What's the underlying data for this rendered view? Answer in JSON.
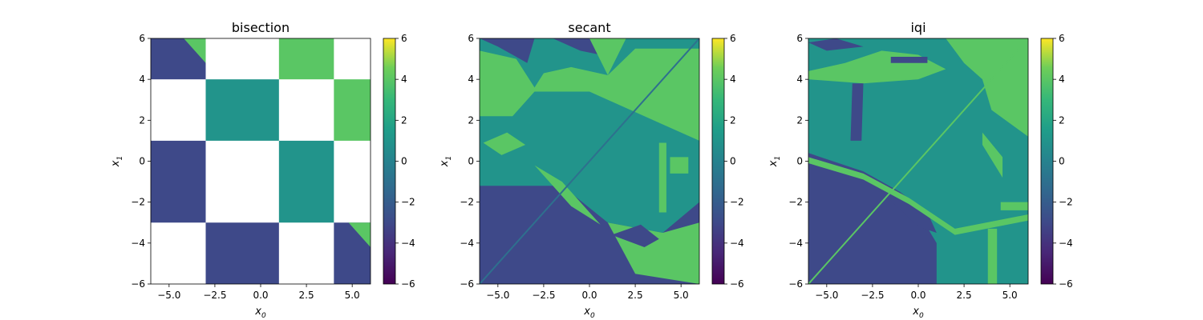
{
  "chart_data": [
    {
      "type": "heatmap",
      "title": "bisection",
      "xlabel": "x",
      "xlabel_sub": "0",
      "ylabel": "x",
      "ylabel_sub": "1",
      "xlim": [
        -6,
        6
      ],
      "ylim": [
        -6,
        6
      ],
      "xticks": [
        -5.0,
        -2.5,
        0.0,
        2.5,
        5.0
      ],
      "xtick_labels": [
        "−5.0",
        "−2.5",
        "0.0",
        "2.5",
        "5.0"
      ],
      "yticks": [
        -6,
        -4,
        -2,
        0,
        2,
        4,
        6
      ],
      "ytick_labels": [
        "−6",
        "−4",
        "−2",
        "0",
        "2",
        "4",
        "6"
      ],
      "colorbar": {
        "range": [
          -6,
          6
        ],
        "ticks": [
          -6,
          -4,
          -2,
          0,
          2,
          4,
          6
        ],
        "tick_labels": [
          "−6",
          "−4",
          "−2",
          "0",
          "2",
          "4",
          "6"
        ]
      },
      "regions": [
        {
          "x": [
            -6,
            -3
          ],
          "y": [
            4,
            6
          ],
          "value": -3
        },
        {
          "x": [
            -3,
            1
          ],
          "y": [
            1,
            4
          ],
          "value": 1
        },
        {
          "x": [
            1,
            4
          ],
          "y": [
            4,
            6
          ],
          "value": 4
        },
        {
          "x": [
            4,
            6
          ],
          "y": [
            1,
            4
          ],
          "value": 4
        },
        {
          "x": [
            -6,
            -3
          ],
          "y": [
            -3,
            1
          ],
          "value": -3
        },
        {
          "x": [
            1,
            4
          ],
          "y": [
            -3,
            1
          ],
          "value": 1
        },
        {
          "x": [
            -3,
            1
          ],
          "y": [
            -6,
            -3
          ],
          "value": -3
        },
        {
          "x": [
            4,
            6
          ],
          "y": [
            -6,
            -3
          ],
          "value": -3
        }
      ],
      "triangles": [
        {
          "points": [
            [
              -4.2,
              6
            ],
            [
              -3,
              6
            ],
            [
              -3,
              4.8
            ]
          ],
          "value": 4
        },
        {
          "points": [
            [
              4.8,
              -3
            ],
            [
              6,
              -3
            ],
            [
              6,
              -4.2
            ]
          ],
          "value": 4
        }
      ]
    },
    {
      "type": "heatmap",
      "title": "secant",
      "xlabel": "x",
      "xlabel_sub": "0",
      "ylabel": "x",
      "ylabel_sub": "1",
      "xlim": [
        -6,
        6
      ],
      "ylim": [
        -6,
        6
      ],
      "xticks": [
        -5.0,
        -2.5,
        0.0,
        2.5,
        5.0
      ],
      "xtick_labels": [
        "−5.0",
        "−2.5",
        "0.0",
        "2.5",
        "5.0"
      ],
      "yticks": [
        -6,
        -4,
        -2,
        0,
        2,
        4,
        6
      ],
      "ytick_labels": [
        "−6",
        "−4",
        "−2",
        "0",
        "2",
        "4",
        "6"
      ],
      "colorbar": {
        "range": [
          -6,
          6
        ],
        "ticks": [
          -6,
          -4,
          -2,
          0,
          2,
          4,
          6
        ],
        "tick_labels": [
          "−6",
          "−4",
          "−2",
          "0",
          "2",
          "4",
          "6"
        ]
      },
      "background_value": 1,
      "polygons": [
        {
          "value": -3,
          "points": [
            [
              -6,
              -1.2
            ],
            [
              -1.5,
              -1.2
            ],
            [
              1,
              -3
            ],
            [
              4,
              -3.5
            ],
            [
              6,
              -2
            ],
            [
              6,
              -6
            ],
            [
              -6,
              -6
            ]
          ]
        },
        {
          "value": 4,
          "points": [
            [
              -6,
              5.4
            ],
            [
              -4,
              5
            ],
            [
              -3,
              3.6
            ],
            [
              -2.5,
              4.3
            ],
            [
              -1,
              4.6
            ],
            [
              1,
              4.2
            ],
            [
              2.5,
              5.5
            ],
            [
              6,
              5.5
            ],
            [
              6,
              1
            ],
            [
              4,
              1.8
            ],
            [
              2,
              2.6
            ],
            [
              0,
              3.4
            ],
            [
              -3,
              3.4
            ],
            [
              -4.2,
              2.2
            ],
            [
              -6,
              2.2
            ]
          ]
        },
        {
          "value": -3,
          "points": [
            [
              -6,
              6
            ],
            [
              -3,
              6
            ],
            [
              -3.4,
              4.8
            ],
            [
              -5,
              5.6
            ]
          ]
        },
        {
          "value": -3,
          "points": [
            [
              -2,
              6
            ],
            [
              0.7,
              6
            ],
            [
              0.6,
              5.2
            ],
            [
              -0.5,
              5.4
            ]
          ]
        },
        {
          "value": 4,
          "points": [
            [
              0,
              6
            ],
            [
              2,
              6
            ],
            [
              1,
              4.2
            ]
          ]
        },
        {
          "value": 4,
          "points": [
            [
              1,
              -3
            ],
            [
              2.5,
              -5.5
            ],
            [
              6,
              -6
            ],
            [
              6,
              -3
            ],
            [
              4,
              -3.5
            ]
          ]
        },
        {
          "value": -3,
          "points": [
            [
              1.2,
              -3.6
            ],
            [
              2.8,
              -3.1
            ],
            [
              3.8,
              -3.8
            ],
            [
              3,
              -4.2
            ]
          ]
        },
        {
          "value": 4,
          "points": [
            [
              -3,
              -0.2
            ],
            [
              -1,
              -2.2
            ],
            [
              0.6,
              -3.1
            ],
            [
              -1.5,
              -1
            ]
          ]
        },
        {
          "value": 4,
          "points": [
            [
              -5.8,
              0.9
            ],
            [
              -4.5,
              1.4
            ],
            [
              -3.5,
              0.8
            ],
            [
              -4.8,
              0.3
            ]
          ]
        },
        {
          "value": 4,
          "points": [
            [
              3.8,
              0.9
            ],
            [
              4.2,
              0.9
            ],
            [
              4.2,
              -2.5
            ],
            [
              3.8,
              -2.5
            ]
          ]
        },
        {
          "value": 4,
          "points": [
            [
              4.4,
              0.2
            ],
            [
              5.4,
              0.2
            ],
            [
              5.4,
              -0.6
            ],
            [
              4.4,
              -0.6
            ]
          ]
        }
      ],
      "diagonal": {
        "value": -1,
        "from": [
          -6,
          -6
        ],
        "to": [
          6,
          6
        ]
      }
    },
    {
      "type": "heatmap",
      "title": "iqi",
      "xlabel": "x",
      "xlabel_sub": "0",
      "ylabel": "x",
      "ylabel_sub": "1",
      "xlim": [
        -6,
        6
      ],
      "ylim": [
        -6,
        6
      ],
      "xticks": [
        -5.0,
        -2.5,
        0.0,
        2.5,
        5.0
      ],
      "xtick_labels": [
        "−5.0",
        "−2.5",
        "0.0",
        "2.5",
        "5.0"
      ],
      "yticks": [
        -6,
        -4,
        -2,
        0,
        2,
        4,
        6
      ],
      "ytick_labels": [
        "−6",
        "−4",
        "−2",
        "0",
        "2",
        "4",
        "6"
      ],
      "colorbar": {
        "range": [
          -6,
          6
        ],
        "ticks": [
          -6,
          -4,
          -2,
          0,
          2,
          4,
          6
        ],
        "tick_labels": [
          "−6",
          "−4",
          "−2",
          "0",
          "2",
          "4",
          "6"
        ]
      },
      "background_value": 1,
      "polygons": [
        {
          "value": -3,
          "points": [
            [
              -6,
              0.4
            ],
            [
              -3,
              -0.5
            ],
            [
              -1,
              -1.5
            ],
            [
              0,
              -2.5
            ],
            [
              1,
              -4
            ],
            [
              1,
              -6
            ],
            [
              -6,
              -6
            ]
          ]
        },
        {
          "value": 4,
          "points": [
            [
              1.5,
              6
            ],
            [
              6,
              6
            ],
            [
              6,
              1.2
            ],
            [
              4,
              2.5
            ],
            [
              3.5,
              4
            ],
            [
              2.5,
              4.8
            ]
          ]
        },
        {
          "value": 4,
          "points": [
            [
              -6,
              4.4
            ],
            [
              -4,
              4.8
            ],
            [
              -2,
              5.4
            ],
            [
              0,
              5.2
            ],
            [
              1.5,
              4.5
            ],
            [
              0,
              4
            ],
            [
              -3,
              3.8
            ],
            [
              -6,
              4
            ]
          ]
        },
        {
          "value": -3,
          "points": [
            [
              -6,
              5.8
            ],
            [
              -4.5,
              6
            ],
            [
              -3,
              5.6
            ],
            [
              -5,
              5.4
            ]
          ]
        },
        {
          "value": -3,
          "points": [
            [
              -2,
              -1.5
            ],
            [
              0,
              -3.2
            ],
            [
              1,
              -3.5
            ],
            [
              0.5,
              -2.5
            ],
            [
              -1,
              -1.5
            ]
          ]
        },
        {
          "value": -3,
          "points": [
            [
              -3.6,
              3.8
            ],
            [
              -3.0,
              3.8
            ],
            [
              -3.1,
              1.0
            ],
            [
              -3.7,
              1.0
            ]
          ]
        },
        {
          "value": 4,
          "points": [
            [
              -6,
              0.2
            ],
            [
              -3,
              -0.6
            ],
            [
              -0.5,
              -1.8
            ],
            [
              2,
              -3.3
            ],
            [
              6,
              -2.6
            ],
            [
              6,
              -2.9
            ],
            [
              2,
              -3.6
            ],
            [
              -0.5,
              -2.1
            ],
            [
              -3,
              -0.9
            ],
            [
              -6,
              -0.1
            ]
          ]
        },
        {
          "value": 4,
          "points": [
            [
              3.5,
              1.4
            ],
            [
              4.6,
              0.2
            ],
            [
              4.6,
              -0.8
            ],
            [
              3.5,
              0.8
            ]
          ]
        },
        {
          "value": 4,
          "points": [
            [
              3.8,
              -3.3
            ],
            [
              4.3,
              -3.3
            ],
            [
              4.3,
              -6
            ],
            [
              3.8,
              -6
            ]
          ]
        },
        {
          "value": 4,
          "points": [
            [
              4.5,
              -2
            ],
            [
              6,
              -2
            ],
            [
              6,
              -2.4
            ],
            [
              4.5,
              -2.4
            ]
          ]
        },
        {
          "value": -3,
          "points": [
            [
              -1.5,
              5.1
            ],
            [
              0.5,
              5.1
            ],
            [
              0.5,
              4.8
            ],
            [
              -1.5,
              4.8
            ]
          ]
        }
      ],
      "diagonal": {
        "value": 4,
        "from": [
          -6,
          -6
        ],
        "to": [
          6,
          6
        ]
      }
    }
  ]
}
